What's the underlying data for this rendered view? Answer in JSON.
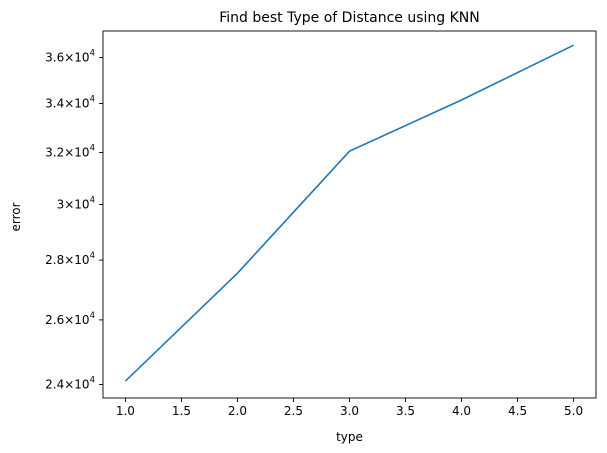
{
  "chart_data": {
    "type": "line",
    "title": "Find best Type of Distance using KNN",
    "xlabel": "type",
    "ylabel": "error",
    "yscale": "log",
    "grid": false,
    "legend": "none",
    "xlim": [
      0.8,
      5.2
    ],
    "ylim": [
      23600,
      37200
    ],
    "x_ticks": [
      1.0,
      1.5,
      2.0,
      2.5,
      3.0,
      3.5,
      4.0,
      4.5,
      5.0
    ],
    "x_tick_labels": [
      "1.0",
      "1.5",
      "2.0",
      "2.5",
      "3.0",
      "3.5",
      "4.0",
      "4.5",
      "5.0"
    ],
    "y_ticks": [
      24000,
      26000,
      28000,
      30000,
      32000,
      34000,
      36000
    ],
    "y_tick_labels": [
      {
        "mantissa": "2.4",
        "exponent": "4"
      },
      {
        "mantissa": "2.6",
        "exponent": "4"
      },
      {
        "mantissa": "2.8",
        "exponent": "4"
      },
      {
        "mantissa": "3",
        "exponent": "4"
      },
      {
        "mantissa": "3.2",
        "exponent": "4"
      },
      {
        "mantissa": "3.4",
        "exponent": "4"
      },
      {
        "mantissa": "3.6",
        "exponent": "4"
      }
    ],
    "tick_label_times": "×",
    "tick_label_base": "10",
    "series": [
      {
        "x": [
          1,
          2,
          3,
          4,
          5
        ],
        "y": [
          24100,
          27550,
          32050,
          34150,
          36550
        ],
        "color": "#1f77b4"
      }
    ]
  }
}
